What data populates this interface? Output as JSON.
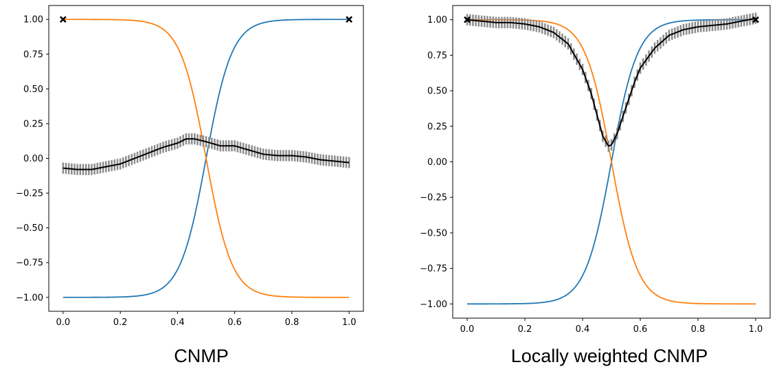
{
  "chart_data": [
    {
      "type": "line",
      "caption": "CNMP",
      "xlim": [
        -0.05,
        1.05
      ],
      "ylim": [
        -1.1,
        1.1
      ],
      "xticks": [
        "0.0",
        "0.2",
        "0.4",
        "0.6",
        "0.8",
        "1.0"
      ],
      "yticks": [
        "1.00",
        "0.75",
        "0.50",
        "0.25",
        "0.00",
        "−0.25",
        "−0.50",
        "−0.75",
        "−1.00"
      ],
      "grid": false,
      "series": [
        {
          "color": "#1f77b4",
          "kind": "sigmoid",
          "center": 0.5,
          "steepness": 22,
          "direction": "up"
        },
        {
          "color": "#ff7f0e",
          "kind": "sigmoid",
          "center": 0.5,
          "steepness": 22,
          "direction": "down"
        },
        {
          "color": "#000000",
          "kind": "prediction_with_error",
          "x": [
            0.0,
            0.05,
            0.1,
            0.15,
            0.2,
            0.25,
            0.3,
            0.35,
            0.4,
            0.43,
            0.46,
            0.5,
            0.55,
            0.6,
            0.65,
            0.7,
            0.75,
            0.8,
            0.85,
            0.9,
            0.95,
            1.0
          ],
          "y": [
            -0.07,
            -0.08,
            -0.08,
            -0.06,
            -0.04,
            0.0,
            0.04,
            0.08,
            0.11,
            0.14,
            0.14,
            0.12,
            0.09,
            0.09,
            0.06,
            0.03,
            0.02,
            0.02,
            0.01,
            -0.01,
            -0.02,
            -0.03
          ],
          "error": 0.04
        }
      ],
      "observations": [
        {
          "x": 0.0,
          "y": 1.0
        },
        {
          "x": 1.0,
          "y": 1.0
        }
      ]
    },
    {
      "type": "line",
      "caption": "Locally weighted CNMP",
      "xlim": [
        -0.05,
        1.05
      ],
      "ylim": [
        -1.1,
        1.1
      ],
      "xticks": [
        "0.0",
        "0.2",
        "0.4",
        "0.6",
        "0.8",
        "1.0"
      ],
      "yticks": [
        "1.00",
        "0.75",
        "0.50",
        "0.25",
        "0.00",
        "−0.25",
        "−0.50",
        "−0.75",
        "−1.00"
      ],
      "grid": false,
      "series": [
        {
          "color": "#1f77b4",
          "kind": "sigmoid",
          "center": 0.5,
          "steepness": 22,
          "direction": "up"
        },
        {
          "color": "#ff7f0e",
          "kind": "sigmoid",
          "center": 0.5,
          "steepness": 22,
          "direction": "down"
        },
        {
          "color": "#000000",
          "kind": "prediction_with_error",
          "x": [
            0.0,
            0.05,
            0.1,
            0.15,
            0.2,
            0.25,
            0.3,
            0.35,
            0.4,
            0.43,
            0.45,
            0.47,
            0.49,
            0.5,
            0.52,
            0.55,
            0.58,
            0.6,
            0.65,
            0.7,
            0.75,
            0.8,
            0.85,
            0.9,
            0.95,
            1.0
          ],
          "y": [
            1.0,
            0.99,
            0.98,
            0.98,
            0.97,
            0.95,
            0.91,
            0.83,
            0.65,
            0.48,
            0.33,
            0.18,
            0.11,
            0.12,
            0.2,
            0.38,
            0.56,
            0.66,
            0.8,
            0.89,
            0.93,
            0.95,
            0.96,
            0.97,
            0.99,
            1.01
          ],
          "error": 0.04
        }
      ],
      "observations": [
        {
          "x": 0.0,
          "y": 1.0
        },
        {
          "x": 1.0,
          "y": 1.0
        }
      ]
    }
  ]
}
